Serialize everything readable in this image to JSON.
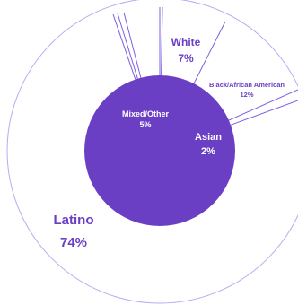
{
  "chart_data": {
    "type": "pie",
    "style": "donut",
    "title": "",
    "slices": [
      {
        "label": "Latino",
        "value": "74%",
        "percent": 74,
        "label_color": "#6a3fc4"
      },
      {
        "label": "Mixed/Other",
        "value": "5%",
        "percent": 5,
        "label_color": "#ffffff"
      },
      {
        "label": "White",
        "value": "7%",
        "percent": 7,
        "label_color": "#6a3fc4"
      },
      {
        "label": "Black/African American",
        "value": "12%",
        "percent": 12,
        "label_color": "#6a3fc4"
      },
      {
        "label": "Asian",
        "value": "2%",
        "percent": 2,
        "label_color": "#ffffff"
      }
    ],
    "colors": {
      "ring_stroke": "#b9aaf0",
      "ring_fill": "#ffffff",
      "center_fill": "#6a3fc4",
      "divider": "#7d5fe0",
      "label_dark": "#6a3fc4",
      "label_light": "#ffffff"
    },
    "legend": "none"
  }
}
